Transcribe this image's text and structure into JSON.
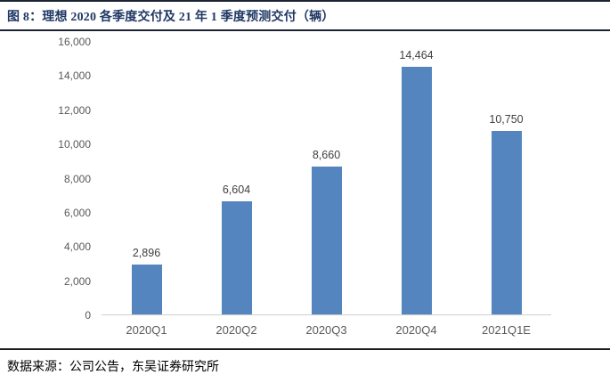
{
  "header": {
    "title": "图 8：理想 2020 各季度交付及 21 年 1 季度预测交付（辆）"
  },
  "chart_data": {
    "type": "bar",
    "title": "理想 2020 各季度交付及 21 年 1 季度预测交付（辆）",
    "categories": [
      "2020Q1",
      "2020Q2",
      "2020Q3",
      "2020Q4",
      "2021Q1E"
    ],
    "values": [
      2896,
      6604,
      8660,
      14464,
      10750
    ],
    "value_labels": [
      "2,896",
      "6,604",
      "8,660",
      "14,464",
      "10,750"
    ],
    "xlabel": "",
    "ylabel": "",
    "ylim": [
      0,
      16000
    ],
    "ytick_interval": 2000,
    "yticks": [
      "0",
      "2,000",
      "4,000",
      "6,000",
      "8,000",
      "10,000",
      "12,000",
      "14,000",
      "16,000"
    ],
    "grid": false,
    "legend": false,
    "bar_color": "#5585BE"
  },
  "footer": {
    "source": "数据来源：公司公告，东吴证券研究所"
  },
  "colors": {
    "bar": "#5585BE",
    "title_text": "#1F3864",
    "rule": "#1c2333",
    "axis_tick_text": "#595959",
    "value_label_text": "#404040",
    "axis_line": "#cfcfcf"
  }
}
